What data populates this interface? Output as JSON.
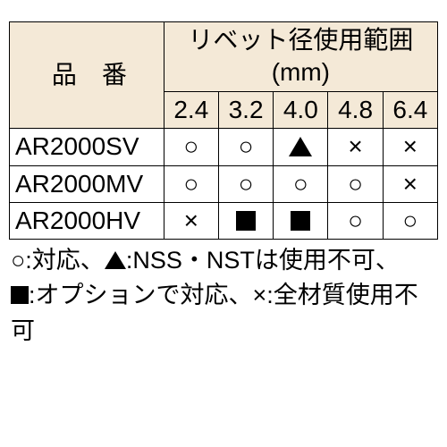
{
  "table": {
    "header_model": "品　番",
    "header_range": "リベット径使用範囲(mm)",
    "sizes": [
      "2.4",
      "3.2",
      "4.0",
      "4.8",
      "6.4"
    ],
    "rows": [
      {
        "model": "AR2000SV",
        "cells": [
          "circle",
          "circle",
          "triangle",
          "cross",
          "cross"
        ]
      },
      {
        "model": "AR2000MV",
        "cells": [
          "circle",
          "circle",
          "circle",
          "circle",
          "cross"
        ]
      },
      {
        "model": "AR2000HV",
        "cells": [
          "cross",
          "square",
          "square",
          "circle",
          "circle"
        ]
      }
    ]
  },
  "legend": {
    "line1_a": "○:対応、",
    "line1_b": ":NSS・NSTは使用不可、",
    "line2_a": ":オプションで対応、",
    "line2_b": "×:全材質使用不可"
  },
  "symbols": {
    "circle": "○",
    "cross": "×"
  },
  "style": {
    "header_bg": "#f4e9d7",
    "border_color": "#000000",
    "text_color": "#000000",
    "background": "#ffffff",
    "font_size_cell": 28,
    "font_size_legend": 27
  }
}
